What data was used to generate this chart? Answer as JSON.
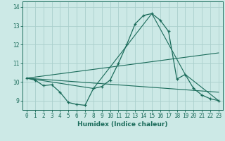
{
  "xlabel": "Humidex (Indice chaleur)",
  "bg_color": "#cce9e6",
  "grid_color": "#aacfcc",
  "line_color": "#1a6b5a",
  "xlim": [
    -0.5,
    23.5
  ],
  "ylim": [
    8.5,
    14.3
  ],
  "xticks": [
    0,
    1,
    2,
    3,
    4,
    5,
    6,
    7,
    8,
    9,
    10,
    11,
    12,
    13,
    14,
    15,
    16,
    17,
    18,
    19,
    20,
    21,
    22,
    23
  ],
  "yticks": [
    9,
    10,
    11,
    12,
    13,
    14
  ],
  "line1_x": [
    0,
    1,
    2,
    3,
    4,
    5,
    6,
    7,
    8,
    9,
    10,
    11,
    12,
    13,
    14,
    15,
    16,
    17,
    18,
    19,
    20,
    21,
    22,
    23
  ],
  "line1_y": [
    10.2,
    10.1,
    9.8,
    9.85,
    9.45,
    8.9,
    8.8,
    8.75,
    9.65,
    9.75,
    10.1,
    11.0,
    12.0,
    13.1,
    13.55,
    13.65,
    13.3,
    12.7,
    10.15,
    10.4,
    9.65,
    9.3,
    9.1,
    9.0
  ],
  "line2_x": [
    0,
    8,
    15,
    19,
    23
  ],
  "line2_y": [
    10.2,
    9.65,
    13.65,
    10.4,
    9.0
  ],
  "line3_x": [
    0,
    23
  ],
  "line3_y": [
    10.2,
    11.55
  ],
  "line4_x": [
    0,
    23
  ],
  "line4_y": [
    10.2,
    9.45
  ]
}
